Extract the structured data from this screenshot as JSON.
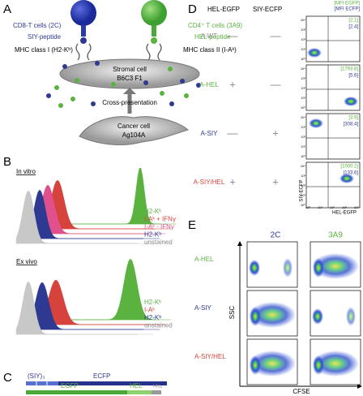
{
  "panel_a": {
    "label": "A",
    "cd8": "CD8-T cells (2C)",
    "cd4": "CD4⁺ T cells (3A9)",
    "siy": "SIY-peptide",
    "hel": "HEL-peptide",
    "mhc1": "MHC class I (H2-Kᵇ)",
    "mhc2": "MHC class II (I-Aᵏ)",
    "stromal": "Stromal cell",
    "stromal_strain": "B6C3 F1",
    "cross": "Cross-presentation",
    "cancer": "Cancer cell",
    "cancer_line": "Ag104A"
  },
  "panel_b": {
    "label": "B",
    "in_vitro": {
      "title": "In vitro",
      "legend": [
        "H2-Kᵏ",
        "I-Aᵏ + IFNγ",
        "I-Aᵏ - IFNγ",
        "H2-Kᵇ",
        "unstained"
      ]
    },
    "ex_vivo": {
      "title": "Ex vivo",
      "legend": [
        "H2-Kᵏ",
        "I-Aᵏ",
        "H2-Kᵇ",
        "unstained"
      ]
    }
  },
  "panel_c": {
    "label": "C",
    "row1": [
      "(SIY)₃",
      "ECFP"
    ],
    "row2": [
      "EGFP",
      "HEL",
      "His₆"
    ]
  },
  "panel_d": {
    "label": "D",
    "columns": [
      "HEL-EGFP",
      "SIY-ECFP"
    ],
    "mfi_header": [
      "[MFI EGFP]",
      "[MFI ECFP]"
    ],
    "rows": [
      {
        "name": "A-WT",
        "marks": [
          "—",
          "—"
        ],
        "mfi": [
          "[2.1]",
          "[2.4]"
        ]
      },
      {
        "name": "A-HEL",
        "marks": [
          "+",
          "—"
        ],
        "mfi": [
          "[1793.8]",
          "[5.6]"
        ]
      },
      {
        "name": "A-SIY",
        "marks": [
          "—",
          "+"
        ],
        "mfi": [
          "[3.9]",
          "[308.4]"
        ]
      },
      {
        "name": "A-SIY/HEL",
        "marks": [
          "+",
          "+"
        ],
        "mfi": [
          "[1000.2]",
          "[133.6]"
        ]
      }
    ],
    "ticks": [
      "10⁰",
      "10¹",
      "10²",
      "10³",
      "10⁴"
    ],
    "y_axis": "SIY-ECFP",
    "x_axis": "HEL-EGFP"
  },
  "panel_e": {
    "label": "E",
    "columns": [
      "2C",
      "3A9"
    ],
    "rows": [
      "A-HEL",
      "A-SIY",
      "A-SIY/HEL"
    ],
    "y_axis": "SSC",
    "x_axis": "CFSE"
  }
}
